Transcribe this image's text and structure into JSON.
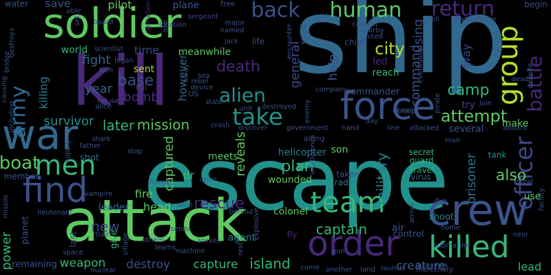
{
  "words": [
    {
      "text": "ship",
      "color": "#31688e"
    },
    {
      "text": "escape",
      "color": "#21918c"
    },
    {
      "text": "attack",
      "color": "#5ec962"
    },
    {
      "text": "kill",
      "color": "#482878"
    },
    {
      "text": "soldier",
      "color": "#5ec962"
    },
    {
      "text": "force",
      "color": "#3b528b"
    },
    {
      "text": "crew",
      "color": "#3b528b"
    },
    {
      "text": "order",
      "color": "#482878"
    },
    {
      "text": "killed",
      "color": "#35b779"
    },
    {
      "text": "war",
      "color": "#31688e"
    },
    {
      "text": "army",
      "color": "#31688e"
    },
    {
      "text": "find",
      "color": "#3b528b"
    },
    {
      "text": "men",
      "color": "#35b779"
    },
    {
      "text": "team",
      "color": "#35b779"
    },
    {
      "text": "group",
      "color": "#b5de2b"
    },
    {
      "text": "human",
      "color": "#5ec962"
    },
    {
      "text": "return",
      "color": "#482878"
    },
    {
      "text": "back",
      "color": "#3b528b"
    },
    {
      "text": "officer",
      "color": "#3e4989"
    },
    {
      "text": "battle",
      "color": "#482878"
    },
    {
      "text": "take",
      "color": "#21918c"
    },
    {
      "text": "alien",
      "color": "#21918c"
    },
    {
      "text": "city",
      "color": "#b5de2b"
    },
    {
      "text": "command",
      "color": "#3b528b"
    },
    {
      "text": "attempt",
      "color": "#5ec962"
    },
    {
      "text": "death",
      "color": "#482878"
    },
    {
      "text": "general",
      "color": "#3e4989"
    },
    {
      "text": "using",
      "color": "#3e4989"
    },
    {
      "text": "mission",
      "color": "#5ec962"
    },
    {
      "text": "later",
      "color": "#35b779"
    },
    {
      "text": "survivor",
      "color": "#21918c"
    },
    {
      "text": "base",
      "color": "#3b528b"
    },
    {
      "text": "boat",
      "color": "#5ec962"
    },
    {
      "text": "captain",
      "color": "#35b779"
    },
    {
      "text": "plan",
      "color": "#35b779"
    },
    {
      "text": "rescue",
      "color": "#482878"
    },
    {
      "text": "military",
      "color": "#26828e"
    },
    {
      "text": "prisoner",
      "color": "#2c728e"
    },
    {
      "text": "also",
      "color": "#5ec962"
    },
    {
      "text": "island",
      "color": "#35b779"
    },
    {
      "text": "capture",
      "color": "#35b779"
    },
    {
      "text": "destroy",
      "color": "#3b528b"
    },
    {
      "text": "creature",
      "color": "#3b528b"
    },
    {
      "text": "weapon",
      "color": "#35b779"
    },
    {
      "text": "power",
      "color": "#35b779"
    },
    {
      "text": "new",
      "color": "#3e4989"
    },
    {
      "text": "fight",
      "color": "#31688e"
    },
    {
      "text": "year",
      "color": "#31688e"
    },
    {
      "text": "bomb",
      "color": "#472d7b"
    },
    {
      "text": "killing",
      "color": "#26828e"
    },
    {
      "text": "however",
      "color": "#31688e"
    },
    {
      "text": "time",
      "color": "#3e4989"
    },
    {
      "text": "sent",
      "color": "#b5de2b"
    },
    {
      "text": "camp",
      "color": "#35b779"
    },
    {
      "text": "way",
      "color": "#3e4989"
    },
    {
      "text": "help",
      "color": "#3b528b"
    },
    {
      "text": "reveals",
      "color": "#5ec962"
    },
    {
      "text": "captured",
      "color": "#5ec962"
    },
    {
      "text": "dr",
      "color": "#35b779"
    },
    {
      "text": "wounded",
      "color": "#5ec962"
    },
    {
      "text": "helicopter",
      "color": "#26828e"
    },
    {
      "text": "son",
      "color": "#5ec962"
    },
    {
      "text": "meets",
      "color": "#5ec962"
    },
    {
      "text": "reach",
      "color": "#35b779"
    },
    {
      "text": "led",
      "color": "#482878"
    },
    {
      "text": "leader",
      "color": "#31688e"
    },
    {
      "text": "head",
      "color": "#5ec962"
    },
    {
      "text": "fire",
      "color": "#5ec962"
    },
    {
      "text": "agent",
      "color": "#26828e"
    },
    {
      "text": "colonel",
      "color": "#5ec962"
    },
    {
      "text": "lead",
      "color": "#35b779"
    },
    {
      "text": "make",
      "color": "#5ec962"
    },
    {
      "text": "try",
      "color": "#3e4989"
    },
    {
      "text": "several",
      "color": "#3b528b"
    },
    {
      "text": "save",
      "color": "#3b528b"
    },
    {
      "text": "pilot",
      "color": "#5ec962"
    },
    {
      "text": "plane",
      "color": "#3b528b"
    },
    {
      "text": "world",
      "color": "#35b779"
    },
    {
      "text": "meanwhile",
      "color": "#5ec962"
    },
    {
      "text": "use",
      "color": "#5ec962"
    },
    {
      "text": "commander",
      "color": "#3b528b"
    },
    {
      "text": "remaining",
      "color": "#3b528b"
    },
    {
      "text": "last",
      "color": "#3e4989"
    },
    {
      "text": "give",
      "color": "#35b779"
    },
    {
      "text": "planet",
      "color": "#3b528b"
    },
    {
      "text": "control",
      "color": "#3b528b"
    },
    {
      "text": "air",
      "color": "#3b528b"
    },
    {
      "text": "shoot",
      "color": "#26828e"
    },
    {
      "text": "fly",
      "color": "#482878"
    },
    {
      "text": "travel",
      "color": "#35b779"
    },
    {
      "text": "virus",
      "color": "#31688e"
    },
    {
      "text": "guard",
      "color": "#35b779"
    },
    {
      "text": "secret",
      "color": "#35b779"
    },
    {
      "text": "tank",
      "color": "#21918c"
    },
    {
      "text": "radio",
      "color": "#26828e"
    },
    {
      "text": "taken",
      "color": "#3e4989"
    },
    {
      "text": "shot",
      "color": "#31688e"
    },
    {
      "text": "member",
      "color": "#3b528b"
    },
    {
      "text": "water",
      "color": "#3b528b"
    },
    {
      "text": "able",
      "color": "#3e4989"
    },
    {
      "text": "free",
      "color": "#3e4989"
    },
    {
      "text": "operation",
      "color": "#482878"
    },
    {
      "text": "location",
      "color": "#3e4989"
    },
    {
      "text": "sergeant",
      "color": "#3e4989"
    },
    {
      "text": "major",
      "color": "#3b528b"
    },
    {
      "text": "named",
      "color": "#3b528b"
    },
    {
      "text": "jack",
      "color": "#3b528b"
    },
    {
      "text": "life",
      "color": "#3b528b"
    },
    {
      "text": "station",
      "color": "#3e4989"
    },
    {
      "text": "contact",
      "color": "#3b528b"
    },
    {
      "text": "united",
      "color": "#3b528b"
    },
    {
      "text": "chief",
      "color": "#3e4989"
    },
    {
      "text": "begin",
      "color": "#3e4989"
    },
    {
      "text": "scientist",
      "color": "#3b528b"
    },
    {
      "text": "logan",
      "color": "#3b528b"
    },
    {
      "text": "turn",
      "color": "#3b528b"
    },
    {
      "text": "fall",
      "color": "#3b528b"
    },
    {
      "text": "refuse",
      "color": "#3b528b"
    },
    {
      "text": "alice",
      "color": "#3b528b"
    },
    {
      "text": "state",
      "color": "#3b528b"
    },
    {
      "text": "unit",
      "color": "#3b528b"
    },
    {
      "text": "destroyed",
      "color": "#3b528b"
    },
    {
      "text": "ocean",
      "color": "#3b528b"
    },
    {
      "text": "discover",
      "color": "#3b528b"
    },
    {
      "text": "government",
      "color": "#3b528b"
    },
    {
      "text": "hand",
      "color": "#3b528b"
    },
    {
      "text": "day",
      "color": "#3b528b"
    },
    {
      "text": "attacked",
      "color": "#3b528b"
    },
    {
      "text": "aboard",
      "color": "#3b528b"
    },
    {
      "text": "line",
      "color": "#3b528b"
    },
    {
      "text": "along",
      "color": "#3e4989"
    },
    {
      "text": "shark",
      "color": "#3b528b"
    },
    {
      "text": "supply",
      "color": "#3b528b"
    },
    {
      "text": "father",
      "color": "#3b528b"
    },
    {
      "text": "stop",
      "color": "#3b528b"
    },
    {
      "text": "vampire",
      "color": "#3b528b"
    },
    {
      "text": "former",
      "color": "#3b528b"
    },
    {
      "text": "upon",
      "color": "#3b528b"
    },
    {
      "text": "soon",
      "color": "#3b528b"
    },
    {
      "text": "behind",
      "color": "#3b528b"
    },
    {
      "text": "lieutenant",
      "color": "#3b528b"
    },
    {
      "text": "missile",
      "color": "#3b528b"
    },
    {
      "text": "train",
      "color": "#3b528b"
    },
    {
      "text": "sends",
      "color": "#3b528b"
    },
    {
      "text": "others",
      "color": "#3b528b"
    },
    {
      "text": "learns",
      "color": "#3b528b"
    },
    {
      "text": "space",
      "color": "#3b528b"
    },
    {
      "text": "nuclear",
      "color": "#3b528b"
    },
    {
      "text": "machine",
      "color": "#3b528b"
    },
    {
      "text": "arrives",
      "color": "#3b528b"
    },
    {
      "text": "rest",
      "color": "#3b528b"
    },
    {
      "text": "explosive",
      "color": "#3b528b"
    },
    {
      "text": "come",
      "color": "#3b528b"
    },
    {
      "text": "another",
      "color": "#3b528b"
    },
    {
      "text": "land",
      "color": "#3b528b"
    },
    {
      "text": "launch",
      "color": "#3b528b"
    },
    {
      "text": "discovers",
      "color": "#3b528b"
    },
    {
      "text": "mercenary",
      "color": "#3b528b"
    },
    {
      "text": "near",
      "color": "#3b528b"
    },
    {
      "text": "home",
      "color": "#3b528b"
    },
    {
      "text": "submarine",
      "color": "#3b528b"
    },
    {
      "text": "steal",
      "color": "#3b528b"
    },
    {
      "text": "facility",
      "color": "#3b528b"
    },
    {
      "text": "due",
      "color": "#3b528b"
    },
    {
      "text": "man",
      "color": "#3b528b"
    },
    {
      "text": "arrive",
      "color": "#3b528b"
    },
    {
      "text": "gun",
      "color": "#3b528b"
    },
    {
      "text": "pirate",
      "color": "#3b528b"
    },
    {
      "text": "join",
      "color": "#3b528b"
    },
    {
      "text": "eventually",
      "color": "#3b528b"
    },
    {
      "text": "troop",
      "color": "#3b528b"
    },
    {
      "text": "company",
      "color": "#3b528b"
    },
    {
      "text": "encounter",
      "color": "#3b528b"
    },
    {
      "text": "would",
      "color": "#3b528b"
    },
    {
      "text": "nearby",
      "color": "#3b528b"
    },
    {
      "text": "tell",
      "color": "#3b528b"
    },
    {
      "text": "leave",
      "color": "#3b528b"
    },
    {
      "text": "dead",
      "color": "#3b528b"
    },
    {
      "text": "body",
      "color": "#3b528b"
    },
    {
      "text": "despite",
      "color": "#3b528b"
    },
    {
      "text": "set",
      "color": "#3b528b"
    },
    {
      "text": "board",
      "color": "#3b528b"
    },
    {
      "text": "one",
      "color": "#3b528b"
    },
    {
      "text": "rebel",
      "color": "#3b528b"
    },
    {
      "text": "device",
      "color": "#3b528b"
    },
    {
      "text": "US",
      "color": "#3b528b"
    },
    {
      "text": "away",
      "color": "#3b528b"
    },
    {
      "text": "sea",
      "color": "#3b528b"
    },
    {
      "text": "crash",
      "color": "#3b528b"
    },
    {
      "text": "enemy",
      "color": "#3b528b"
    },
    {
      "text": "intelligence",
      "color": "#3b528b"
    },
    {
      "text": "including",
      "color": "#3b528b"
    },
    {
      "text": "causing",
      "color": "#3b528b"
    },
    {
      "text": "bridge",
      "color": "#3b528b"
    },
    {
      "text": "destroys",
      "color": "#3b528b"
    },
    {
      "text": "village",
      "color": "#3b528b"
    }
  ]
}
